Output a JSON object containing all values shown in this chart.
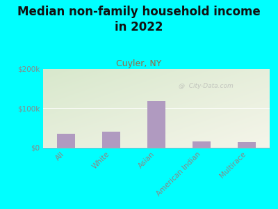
{
  "title": "Median non-family household income\nin 2022",
  "subtitle": "Cuyler, NY",
  "categories": [
    "All",
    "White",
    "Asian",
    "American Indian",
    "Multirace"
  ],
  "values": [
    35000,
    40000,
    118000,
    15000,
    13000
  ],
  "bar_color": "#b09ac0",
  "ylim": [
    0,
    200000
  ],
  "yticks": [
    0,
    100000,
    200000
  ],
  "ytick_labels": [
    "$0",
    "$100k",
    "$200k"
  ],
  "background_color_top_left": "#d8e8cc",
  "background_color_bottom_right": "#f5f5ea",
  "outer_bg": "#00ffff",
  "title_fontsize": 12,
  "subtitle_fontsize": 9,
  "subtitle_color": "#996644",
  "watermark": "@  City-Data.com",
  "axis_color": "#aaaaaa",
  "tick_label_color": "#888888",
  "tick_fontsize": 7.5
}
